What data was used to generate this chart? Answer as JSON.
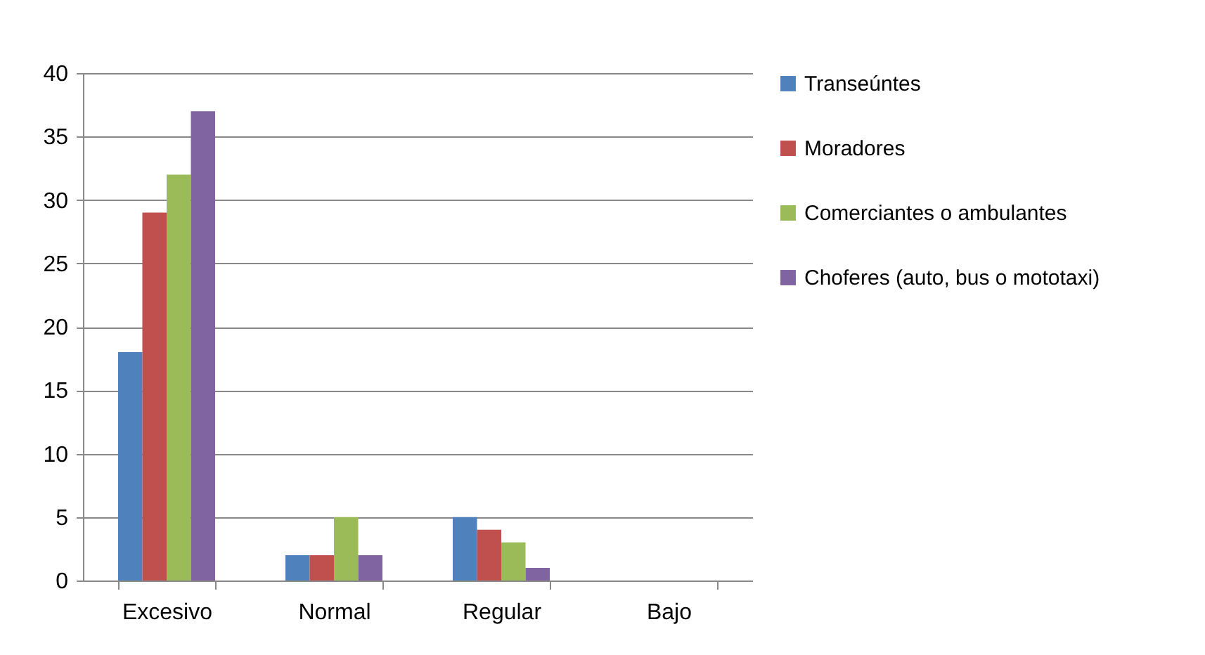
{
  "chart_data": {
    "type": "bar",
    "categories": [
      "Excesivo",
      "Normal",
      "Regular",
      "Bajo"
    ],
    "series": [
      {
        "name": "Transeúntes",
        "color": "#4f81bd",
        "values": [
          18,
          2,
          5,
          0
        ]
      },
      {
        "name": "Moradores",
        "color": "#c0504d",
        "values": [
          29,
          2,
          4,
          0
        ]
      },
      {
        "name": "Comerciantes o ambulantes",
        "color": "#9bbb59",
        "values": [
          32,
          5,
          3,
          0
        ]
      },
      {
        "name": "Choferes (auto, bus o mototaxi)",
        "color": "#8064a2",
        "values": [
          37,
          2,
          1,
          0
        ]
      }
    ],
    "ylim": [
      0,
      40
    ],
    "yticks": [
      0,
      5,
      10,
      15,
      20,
      25,
      30,
      35,
      40
    ],
    "grid": "y",
    "legend": "right"
  }
}
